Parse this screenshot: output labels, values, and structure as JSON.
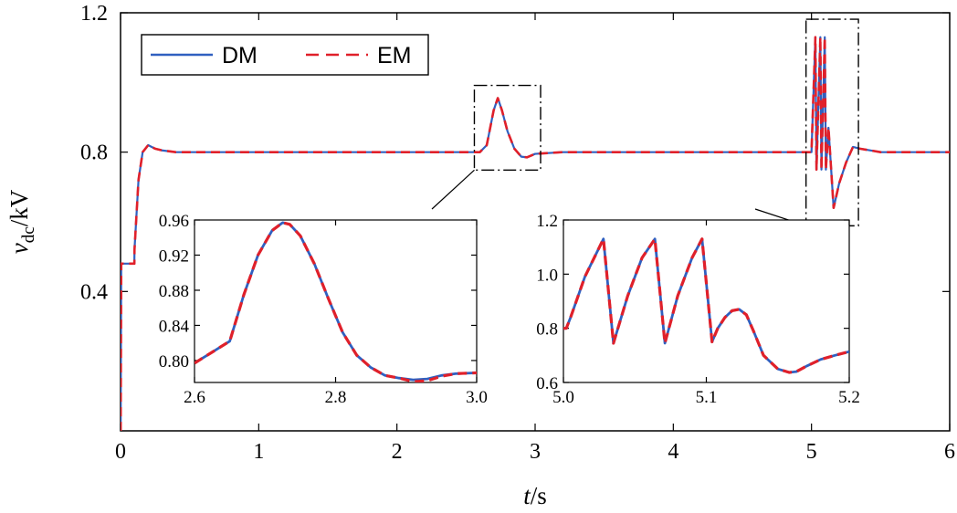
{
  "chart_data": [
    {
      "id": "main",
      "type": "line",
      "title": "",
      "xlabel_var": "t",
      "xlabel_unit": "/s",
      "ylabel_var": "v",
      "ylabel_sub": "dc",
      "ylabel_unit": "/kV",
      "xlim": [
        0,
        6
      ],
      "ylim": [
        0.0,
        1.2
      ],
      "xticks": [
        0,
        1,
        2,
        3,
        4,
        5,
        6
      ],
      "xtick_labels": [
        "0",
        "1",
        "2",
        "3",
        "4",
        "5",
        "6"
      ],
      "yticks": [
        0.4,
        0.8,
        1.2
      ],
      "ytick_labels": [
        "0.4",
        "0.8",
        "1.2"
      ],
      "grid": false,
      "legend": {
        "position": "top-left",
        "entries": [
          {
            "label": "DM",
            "style": "solid",
            "color": "#3060c0"
          },
          {
            "label": "EM",
            "style": "dashed",
            "color": "#e0202a"
          }
        ]
      },
      "series": [
        {
          "name": "DM",
          "x": [
            0,
            0.001,
            0.005,
            0.1,
            0.101,
            0.13,
            0.16,
            0.2,
            0.25,
            0.3,
            0.4,
            0.6,
            1.0,
            2.0,
            2.6,
            2.65,
            2.7,
            2.73,
            2.76,
            2.8,
            2.85,
            2.9,
            2.94,
            3.0,
            3.2,
            4.0,
            4.99,
            5.0,
            5.028,
            5.036,
            5.064,
            5.072,
            5.096,
            5.104,
            5.123,
            5.16,
            5.2,
            5.25,
            5.3,
            5.35,
            5.5,
            6.0
          ],
          "y": [
            0.0,
            0.0,
            0.48,
            0.48,
            0.52,
            0.72,
            0.8,
            0.82,
            0.81,
            0.805,
            0.8,
            0.8,
            0.8,
            0.8,
            0.8,
            0.82,
            0.92,
            0.955,
            0.92,
            0.86,
            0.81,
            0.787,
            0.785,
            0.795,
            0.8,
            0.8,
            0.8,
            0.8,
            1.13,
            0.75,
            1.13,
            0.75,
            1.13,
            0.75,
            0.87,
            0.64,
            0.71,
            0.77,
            0.815,
            0.81,
            0.8,
            0.8
          ]
        },
        {
          "name": "EM",
          "x": [
            0,
            0.001,
            0.005,
            0.1,
            0.101,
            0.13,
            0.16,
            0.2,
            0.25,
            0.3,
            0.4,
            0.6,
            1.0,
            2.0,
            2.6,
            2.65,
            2.7,
            2.73,
            2.76,
            2.8,
            2.85,
            2.9,
            2.94,
            3.0,
            3.2,
            4.0,
            4.99,
            5.0,
            5.028,
            5.036,
            5.064,
            5.072,
            5.096,
            5.104,
            5.123,
            5.16,
            5.2,
            5.25,
            5.3,
            5.35,
            5.5,
            6.0
          ],
          "y": [
            0.0,
            0.0,
            0.48,
            0.48,
            0.52,
            0.72,
            0.8,
            0.82,
            0.81,
            0.805,
            0.8,
            0.8,
            0.8,
            0.8,
            0.8,
            0.82,
            0.92,
            0.955,
            0.92,
            0.86,
            0.81,
            0.787,
            0.785,
            0.795,
            0.8,
            0.8,
            0.8,
            0.8,
            1.13,
            0.75,
            1.13,
            0.75,
            1.13,
            0.75,
            0.87,
            0.64,
            0.71,
            0.77,
            0.815,
            0.81,
            0.8,
            0.8
          ]
        }
      ],
      "zoom_boxes": [
        {
          "x_range": [
            2.6,
            3.0
          ],
          "y_range": [
            0.78,
            0.96
          ],
          "target": "inset-1"
        },
        {
          "x_range": [
            5.0,
            5.3
          ],
          "y_range": [
            0.62,
            1.15
          ],
          "target": "inset-2"
        }
      ]
    },
    {
      "id": "inset-1",
      "type": "line",
      "xlim": [
        2.6,
        3.0
      ],
      "ylim": [
        0.775,
        0.96
      ],
      "xticks": [
        2.6,
        2.8,
        3.0
      ],
      "xtick_labels": [
        "2.6",
        "2.8",
        "3.0"
      ],
      "yticks": [
        0.8,
        0.84,
        0.88,
        0.92,
        0.96
      ],
      "ytick_labels": [
        "0.80",
        "0.84",
        "0.88",
        "0.92",
        "0.96"
      ],
      "series": [
        {
          "name": "DM",
          "x": [
            2.6,
            2.63,
            2.65,
            2.67,
            2.69,
            2.71,
            2.725,
            2.735,
            2.75,
            2.77,
            2.79,
            2.81,
            2.83,
            2.85,
            2.87,
            2.89,
            2.91,
            2.93,
            2.95,
            2.97,
            3.0
          ],
          "y": [
            0.797,
            0.812,
            0.822,
            0.875,
            0.92,
            0.948,
            0.957,
            0.955,
            0.942,
            0.91,
            0.87,
            0.832,
            0.806,
            0.792,
            0.783,
            0.78,
            0.778,
            0.779,
            0.783,
            0.785,
            0.786
          ]
        },
        {
          "name": "EM",
          "x": [
            2.6,
            2.63,
            2.65,
            2.67,
            2.69,
            2.71,
            2.725,
            2.735,
            2.75,
            2.77,
            2.79,
            2.81,
            2.83,
            2.85,
            2.87,
            2.89,
            2.91,
            2.93,
            2.95,
            2.97,
            3.0
          ],
          "y": [
            0.797,
            0.812,
            0.822,
            0.875,
            0.92,
            0.948,
            0.957,
            0.955,
            0.942,
            0.91,
            0.87,
            0.832,
            0.806,
            0.792,
            0.783,
            0.78,
            0.776,
            0.777,
            0.782,
            0.785,
            0.786
          ]
        }
      ]
    },
    {
      "id": "inset-2",
      "type": "line",
      "xlim": [
        5.0,
        5.2
      ],
      "ylim": [
        0.6,
        1.2
      ],
      "xticks": [
        5.0,
        5.1,
        5.2
      ],
      "xtick_labels": [
        "5.0",
        "5.1",
        "5.2"
      ],
      "yticks": [
        0.6,
        0.8,
        1.0,
        1.2
      ],
      "ytick_labels": [
        "0.6",
        "0.8",
        "1.0",
        "1.2"
      ],
      "series": [
        {
          "name": "DM",
          "x": [
            5.0,
            5.002,
            5.005,
            5.015,
            5.028,
            5.035,
            5.045,
            5.055,
            5.064,
            5.071,
            5.08,
            5.09,
            5.097,
            5.104,
            5.108,
            5.113,
            5.118,
            5.123,
            5.128,
            5.133,
            5.14,
            5.15,
            5.158,
            5.163,
            5.17,
            5.18,
            5.19,
            5.2
          ],
          "y": [
            0.8,
            0.8,
            0.84,
            0.99,
            1.13,
            0.745,
            0.92,
            1.06,
            1.13,
            0.745,
            0.92,
            1.06,
            1.13,
            0.75,
            0.8,
            0.84,
            0.865,
            0.87,
            0.85,
            0.79,
            0.7,
            0.65,
            0.637,
            0.64,
            0.66,
            0.685,
            0.7,
            0.714
          ]
        },
        {
          "name": "EM",
          "x": [
            5.0,
            5.002,
            5.005,
            5.015,
            5.028,
            5.035,
            5.045,
            5.055,
            5.064,
            5.071,
            5.08,
            5.09,
            5.097,
            5.104,
            5.108,
            5.113,
            5.118,
            5.123,
            5.128,
            5.133,
            5.14,
            5.15,
            5.158,
            5.163,
            5.17,
            5.18,
            5.19,
            5.2
          ],
          "y": [
            0.8,
            0.8,
            0.84,
            0.99,
            1.13,
            0.745,
            0.92,
            1.06,
            1.13,
            0.745,
            0.92,
            1.06,
            1.13,
            0.75,
            0.8,
            0.84,
            0.865,
            0.87,
            0.85,
            0.79,
            0.7,
            0.65,
            0.637,
            0.64,
            0.66,
            0.685,
            0.7,
            0.714
          ]
        }
      ]
    }
  ]
}
